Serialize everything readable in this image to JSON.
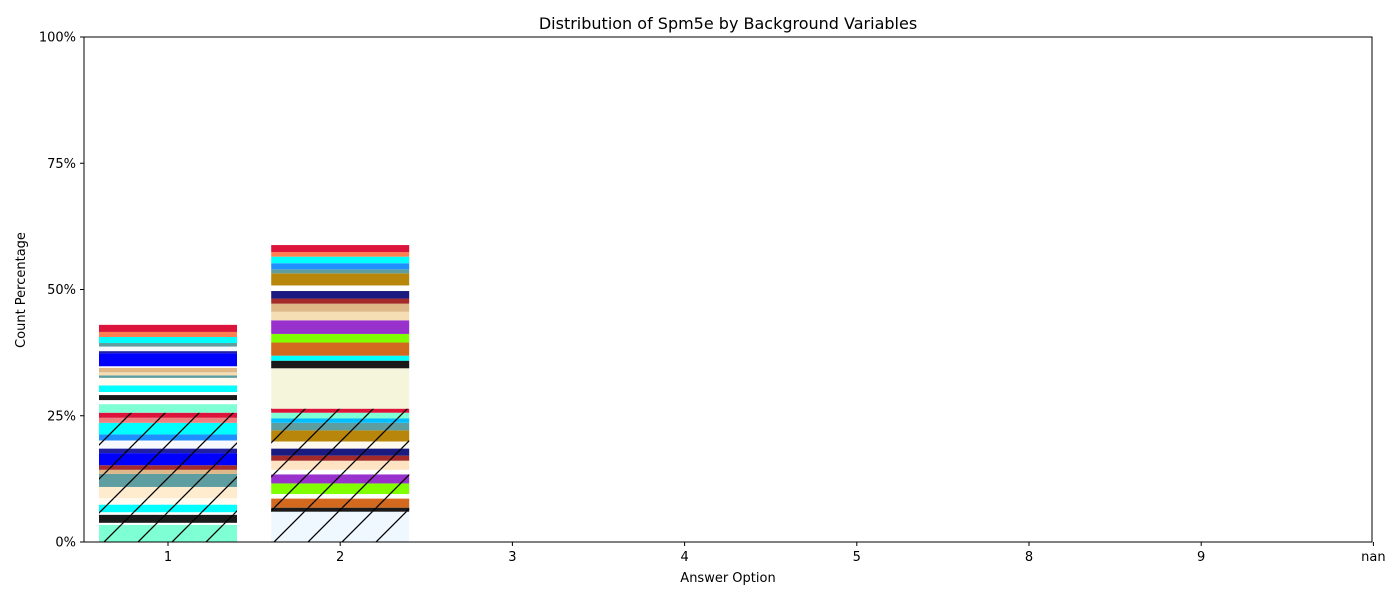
{
  "chart_data": {
    "type": "bar",
    "stacked": true,
    "title": "Distribution of Spm5e by Background Variables",
    "xlabel": "Answer Option",
    "ylabel": "Count Percentage",
    "categories": [
      "1",
      "2",
      "3",
      "4",
      "5",
      "8",
      "9",
      "nan"
    ],
    "ylim": [
      0,
      100
    ],
    "yticks": [
      0,
      25,
      50,
      75,
      100
    ],
    "ytick_labels": [
      "0%",
      "25%",
      "50%",
      "75%",
      "100%"
    ],
    "grid": false,
    "legend": "none",
    "stacks": [
      {
        "category": "1",
        "segments": [
          {
            "value": 3.4,
            "color": "#7fffd4",
            "hatch": true
          },
          {
            "value": 0.4,
            "color": "#ffffff",
            "hatch": true
          },
          {
            "value": 1.6,
            "color": "#1a1a1a",
            "hatch": true
          },
          {
            "value": 0.5,
            "color": "#ffffff",
            "hatch": true
          },
          {
            "value": 1.5,
            "color": "#00ffff",
            "hatch": true
          },
          {
            "value": 1.3,
            "color": "#fffaf0",
            "hatch": true
          },
          {
            "value": 2.2,
            "color": "#ffebcd",
            "hatch": true
          },
          {
            "value": 2.6,
            "color": "#5f9ea0",
            "hatch": true
          },
          {
            "value": 0.8,
            "color": "#deb887",
            "hatch": true
          },
          {
            "value": 0.9,
            "color": "#a52a2a",
            "hatch": true
          },
          {
            "value": 2.4,
            "color": "#0000ff",
            "hatch": true
          },
          {
            "value": 0.9,
            "color": "#2020a0",
            "hatch": true
          },
          {
            "value": 1.6,
            "color": "#f8f8ff",
            "hatch": true
          },
          {
            "value": 1.2,
            "color": "#1e90ff",
            "hatch": true
          },
          {
            "value": 2.3,
            "color": "#00ffff",
            "hatch": true
          },
          {
            "value": 1.0,
            "color": "#f08080",
            "hatch": true
          },
          {
            "value": 1.0,
            "color": "#dc143c",
            "hatch": true
          },
          {
            "value": 1.7,
            "color": "#7fffd4",
            "hatch": false
          },
          {
            "value": 0.8,
            "color": "#ffffff",
            "hatch": false
          },
          {
            "value": 1.0,
            "color": "#1a1a1a",
            "hatch": false
          },
          {
            "value": 0.6,
            "color": "#ffffff",
            "hatch": false
          },
          {
            "value": 1.3,
            "color": "#00ffff",
            "hatch": false
          },
          {
            "value": 1.5,
            "color": "#fffaf0",
            "hatch": false
          },
          {
            "value": 0.5,
            "color": "#5f9ea0",
            "hatch": false
          },
          {
            "value": 0.6,
            "color": "#f5deb3",
            "hatch": false
          },
          {
            "value": 0.9,
            "color": "#deb887",
            "hatch": false
          },
          {
            "value": 0.3,
            "color": "#ffffff",
            "hatch": false
          },
          {
            "value": 2.6,
            "color": "#0000ff",
            "hatch": false
          },
          {
            "value": 0.4,
            "color": "#2020a0",
            "hatch": false
          },
          {
            "value": 0.9,
            "color": "#f8f8ff",
            "hatch": false
          },
          {
            "value": 0.7,
            "color": "#5f9ea0",
            "hatch": false
          },
          {
            "value": 1.2,
            "color": "#00ffff",
            "hatch": false
          },
          {
            "value": 1.0,
            "color": "#ff7f50",
            "hatch": false
          },
          {
            "value": 1.4,
            "color": "#dc143c",
            "hatch": false
          }
        ]
      },
      {
        "category": "2",
        "segments": [
          {
            "value": 6.0,
            "color": "#f0f8ff",
            "hatch": true
          },
          {
            "value": 0.8,
            "color": "#1a1a1a",
            "hatch": true
          },
          {
            "value": 1.8,
            "color": "#d2691e",
            "hatch": true
          },
          {
            "value": 0.9,
            "color": "#ffffff",
            "hatch": true
          },
          {
            "value": 2.1,
            "color": "#7fff00",
            "hatch": true
          },
          {
            "value": 1.8,
            "color": "#9932cc",
            "hatch": true
          },
          {
            "value": 0.9,
            "color": "#ffffff",
            "hatch": true
          },
          {
            "value": 1.8,
            "color": "#ffe4c4",
            "hatch": true
          },
          {
            "value": 1.0,
            "color": "#a52a2a",
            "hatch": true
          },
          {
            "value": 1.4,
            "color": "#1a1a80",
            "hatch": true
          },
          {
            "value": 1.4,
            "color": "#fffaf0",
            "hatch": true
          },
          {
            "value": 2.2,
            "color": "#b8860b",
            "hatch": true
          },
          {
            "value": 1.5,
            "color": "#5f9ea0",
            "hatch": true
          },
          {
            "value": 0.9,
            "color": "#00bfff",
            "hatch": true
          },
          {
            "value": 1.1,
            "color": "#7fffd4",
            "hatch": true
          },
          {
            "value": 0.8,
            "color": "#dc143c",
            "hatch": true
          },
          {
            "value": 8.0,
            "color": "#f5f5dc",
            "hatch": false
          },
          {
            "value": 1.5,
            "color": "#1a1a1a",
            "hatch": false
          },
          {
            "value": 1.0,
            "color": "#00ffff",
            "hatch": false
          },
          {
            "value": 2.6,
            "color": "#d2691e",
            "hatch": false
          },
          {
            "value": 1.7,
            "color": "#7fff00",
            "hatch": false
          },
          {
            "value": 2.7,
            "color": "#9932cc",
            "hatch": false
          },
          {
            "value": 1.7,
            "color": "#f5deb3",
            "hatch": false
          },
          {
            "value": 1.6,
            "color": "#deb887",
            "hatch": false
          },
          {
            "value": 1.0,
            "color": "#a52a2a",
            "hatch": false
          },
          {
            "value": 1.5,
            "color": "#1a1a80",
            "hatch": false
          },
          {
            "value": 1.1,
            "color": "#ffffff",
            "hatch": false
          },
          {
            "value": 2.4,
            "color": "#b8860b",
            "hatch": false
          },
          {
            "value": 0.8,
            "color": "#5f9ea0",
            "hatch": false
          },
          {
            "value": 1.2,
            "color": "#1e90ff",
            "hatch": false
          },
          {
            "value": 1.3,
            "color": "#00ffff",
            "hatch": false
          },
          {
            "value": 0.9,
            "color": "#ff7f50",
            "hatch": false
          },
          {
            "value": 1.4,
            "color": "#dc143c",
            "hatch": false
          }
        ]
      }
    ]
  }
}
